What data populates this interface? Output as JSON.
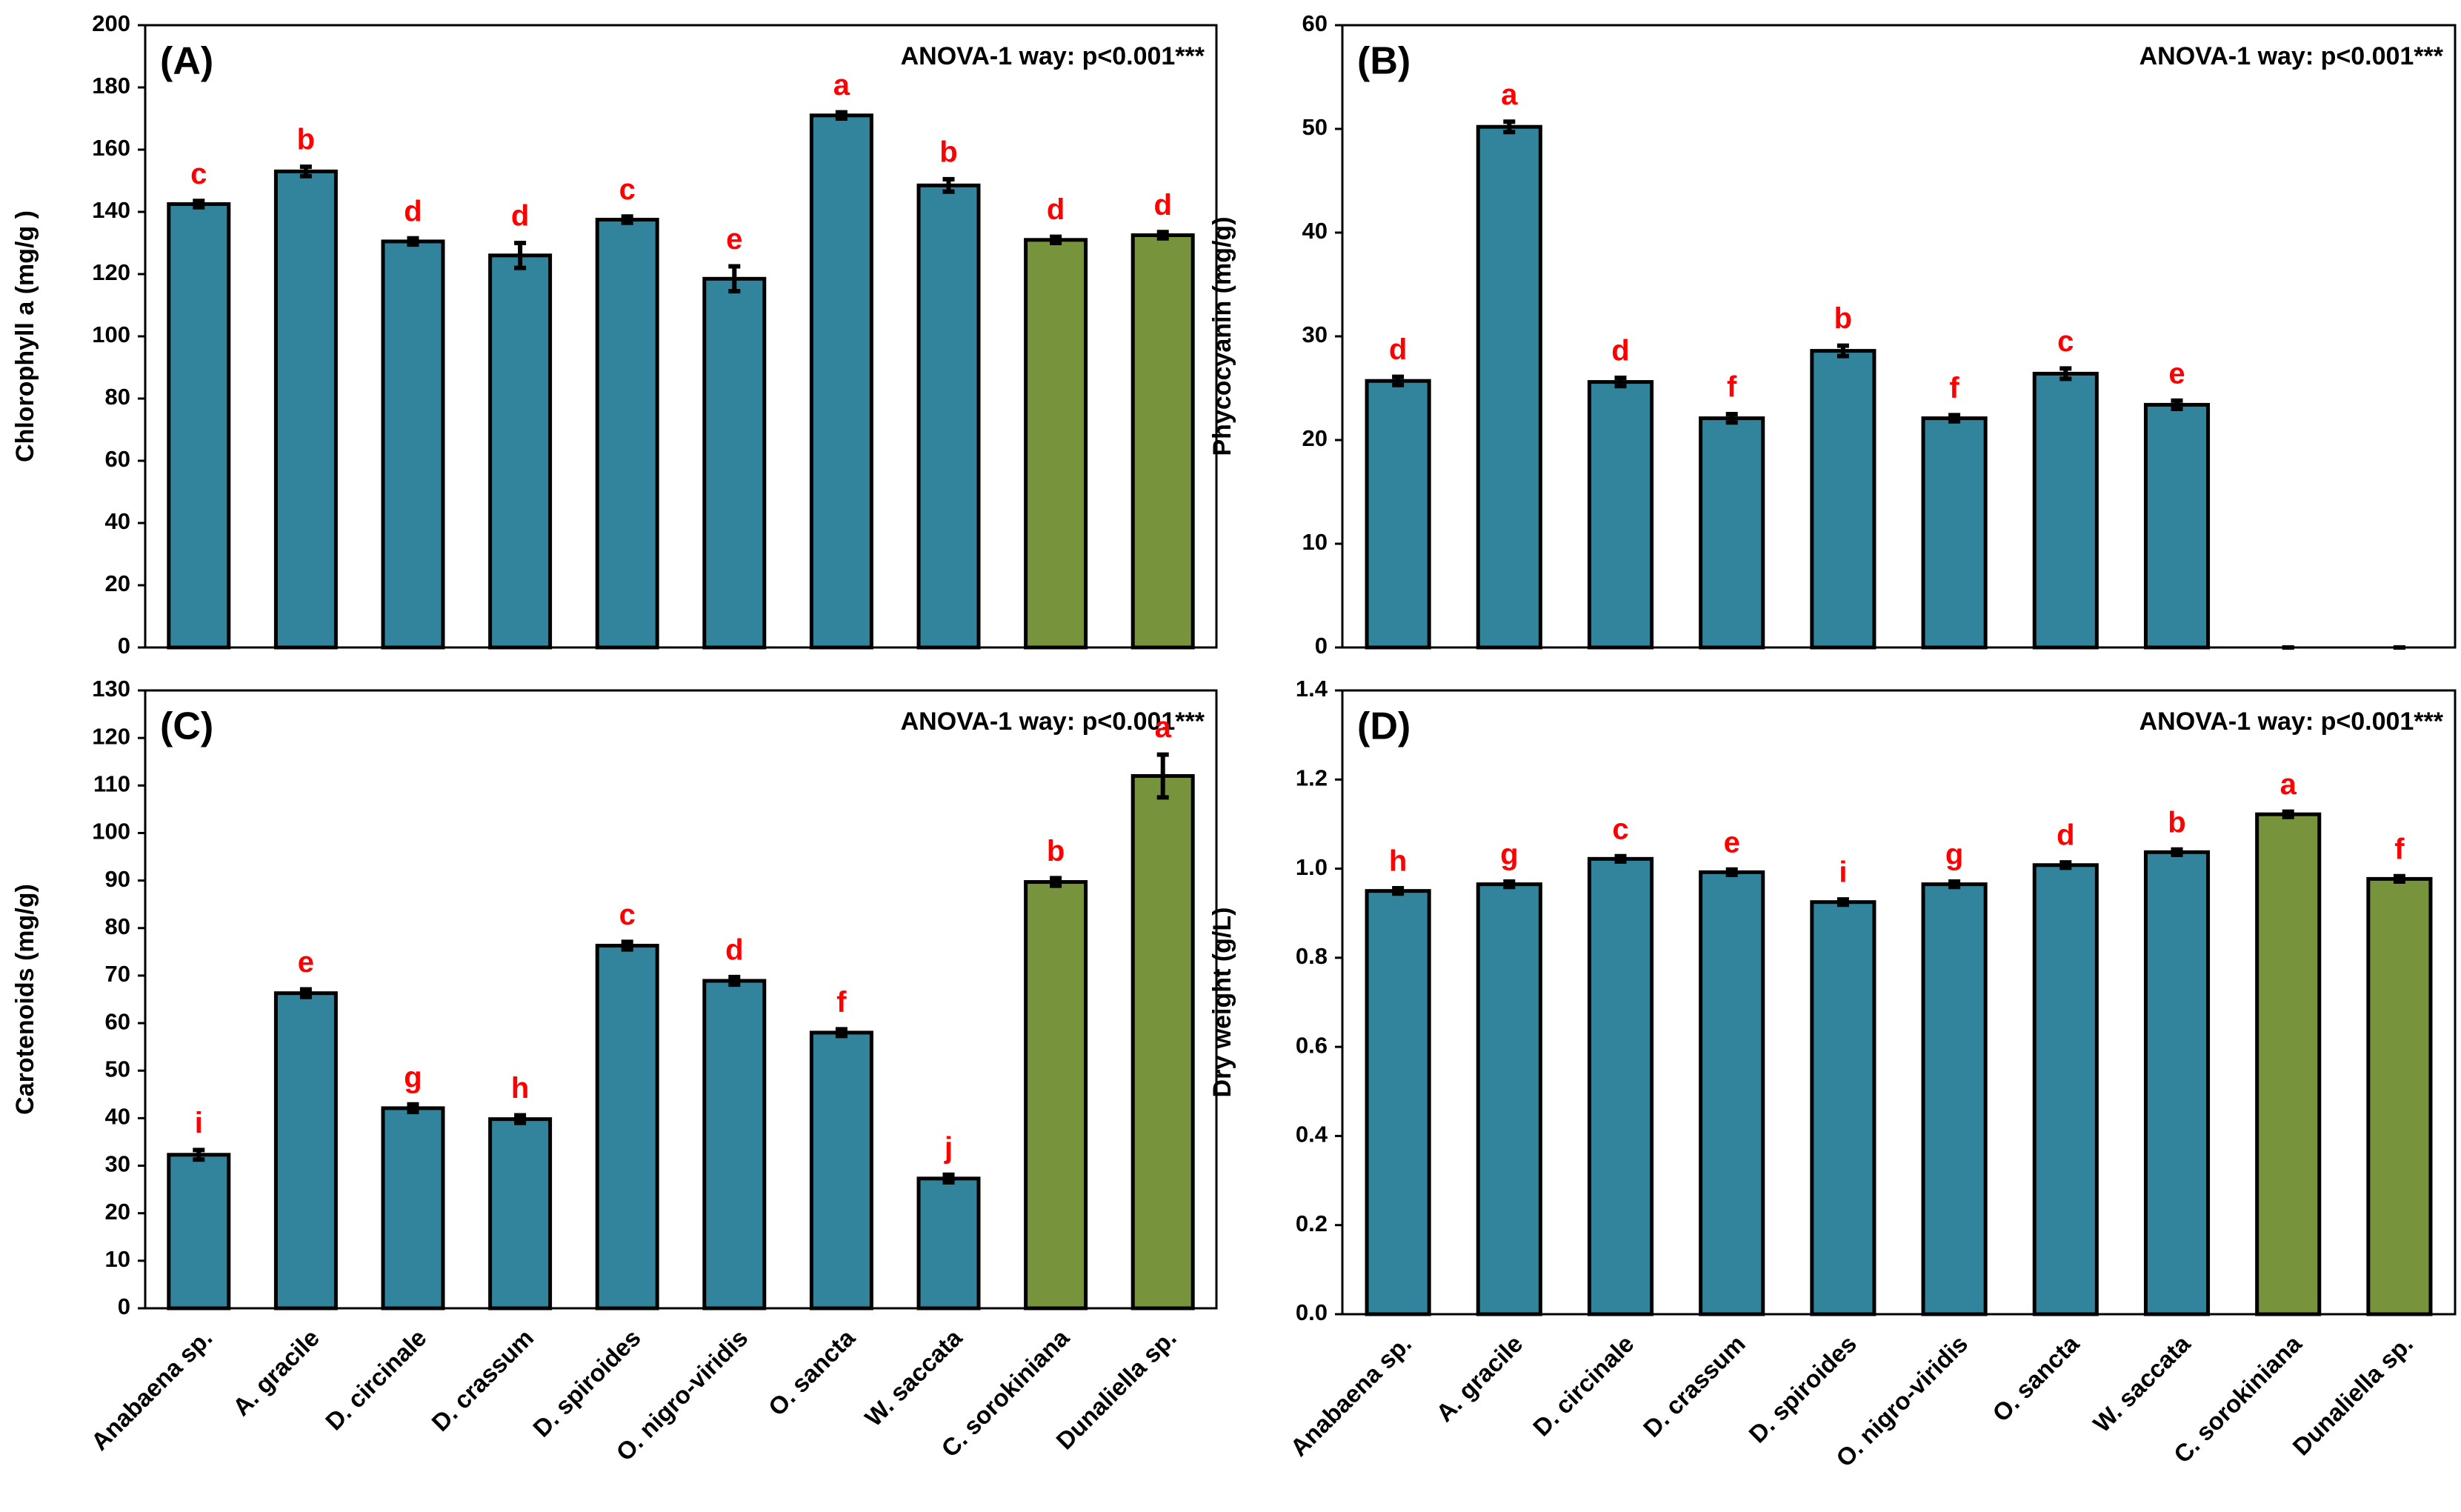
{
  "chart_data": [
    {
      "type": "bar",
      "title": "(A)",
      "annotation": "ANOVA-1 way: p<0.001***",
      "y_label": "Chlorophyll a (mg/g )",
      "values": [
        142.5,
        153,
        130.5,
        126,
        137.5,
        118.5,
        171,
        148.5,
        131,
        132.5
      ],
      "errors": [
        1,
        1.5,
        1,
        4,
        1,
        4,
        1,
        2,
        1,
        1
      ],
      "letters": [
        "c",
        "b",
        "d",
        "d",
        "c",
        "e",
        "a",
        "b",
        "d",
        "d"
      ],
      "colors": [
        "#31849b",
        "#31849b",
        "#31849b",
        "#31849b",
        "#31849b",
        "#31849b",
        "#31849b",
        "#31849b",
        "#77933c",
        "#77933c"
      ],
      "ylim": [
        0,
        200
      ],
      "yticks": [
        0,
        20,
        40,
        60,
        80,
        100,
        120,
        140,
        160,
        180,
        200
      ]
    },
    {
      "type": "bar",
      "title": "(B)",
      "annotation": "ANOVA-1 way: p<0.001***",
      "y_label": "Phycocyanin (mg/g)",
      "values": [
        25.7,
        50.2,
        25.6,
        22.1,
        28.6,
        22.1,
        26.4,
        23.4,
        0,
        0
      ],
      "errors": [
        0.4,
        0.5,
        0.4,
        0.4,
        0.5,
        0.3,
        0.5,
        0.4,
        0,
        0
      ],
      "letters": [
        "d",
        "a",
        "d",
        "f",
        "b",
        "f",
        "c",
        "e",
        null,
        null
      ],
      "colors": [
        "#31849b",
        "#31849b",
        "#31849b",
        "#31849b",
        "#31849b",
        "#31849b",
        "#31849b",
        "#31849b",
        "#77933c",
        "#77933c"
      ],
      "ylim": [
        0,
        60
      ],
      "yticks": [
        0,
        10,
        20,
        30,
        40,
        50,
        60
      ]
    },
    {
      "type": "bar",
      "title": "(C)",
      "annotation": "ANOVA-1 way: p<0.001***",
      "y_label": "Carotenoids (mg/g)",
      "categories": [
        "Anabaena sp.",
        "A. gracile",
        "D. circinale",
        "D. crassum",
        "D. spiroides",
        "O. nigro-viridis",
        "O. sancta",
        "W. saccata",
        "C. sorokiniana",
        "Dunaliella sp."
      ],
      "values": [
        32.3,
        66.3,
        42.1,
        39.8,
        76.3,
        68.9,
        58,
        27.3,
        89.7,
        112
      ],
      "errors": [
        1,
        0.8,
        0.8,
        0.8,
        0.8,
        0.8,
        0.7,
        0.8,
        0.8,
        4.5
      ],
      "letters": [
        "i",
        "e",
        "g",
        "h",
        "c",
        "d",
        "f",
        "j",
        "b",
        "a"
      ],
      "colors": [
        "#31849b",
        "#31849b",
        "#31849b",
        "#31849b",
        "#31849b",
        "#31849b",
        "#31849b",
        "#31849b",
        "#77933c",
        "#77933c"
      ],
      "ylim": [
        0,
        130
      ],
      "yticks": [
        0,
        10,
        20,
        30,
        40,
        50,
        60,
        70,
        80,
        90,
        100,
        110,
        120,
        130
      ]
    },
    {
      "type": "bar",
      "title": "(D)",
      "annotation": "ANOVA-1 way: p<0.001***",
      "y_label": "Dry weight (g/L)",
      "categories": [
        "Anabaena sp.",
        "A. gracile",
        "D. circinale",
        "D. crassum",
        "D. spiroides",
        "O. nigro-viridis",
        "O. sancta",
        "W. saccata",
        "C. sorokiniana",
        "Dunaliella sp."
      ],
      "values": [
        0.95,
        0.965,
        1.022,
        0.992,
        0.925,
        0.965,
        1.008,
        1.037,
        1.122,
        0.977
      ],
      "errors": [
        0.006,
        0.006,
        0.006,
        0.006,
        0.006,
        0.006,
        0.006,
        0.006,
        0.006,
        0.006
      ],
      "letters": [
        "h",
        "g",
        "c",
        "e",
        "i",
        "g",
        "d",
        "b",
        "a",
        "f"
      ],
      "colors": [
        "#31849b",
        "#31849b",
        "#31849b",
        "#31849b",
        "#31849b",
        "#31849b",
        "#31849b",
        "#31849b",
        "#77933c",
        "#77933c"
      ],
      "ylim": [
        0,
        1.4
      ],
      "yticks": [
        {
          "value": 0,
          "label": "0.0"
        },
        0.2,
        0.4,
        0.6,
        0.8,
        {
          "value": 1,
          "label": "1.0"
        },
        1.2,
        1.4
      ]
    }
  ]
}
